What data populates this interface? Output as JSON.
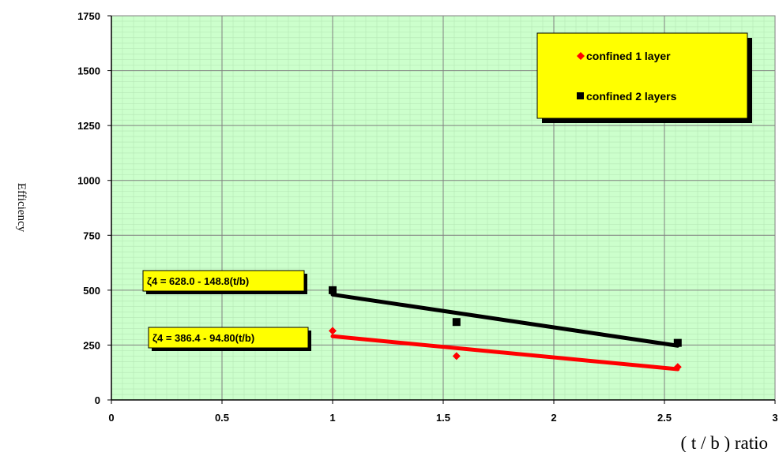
{
  "chart_data": {
    "type": "scatter",
    "xlabel": "( t / b ) ratio",
    "ylabel": "Efficiency",
    "xlim": [
      0,
      3
    ],
    "ylim": [
      0,
      1750
    ],
    "xticks": [
      "0",
      "0.5",
      "1",
      "1.5",
      "2",
      "2.5",
      "3"
    ],
    "yticks": [
      "0",
      "250",
      "500",
      "750",
      "1000",
      "1250",
      "1500",
      "1750"
    ],
    "grid": true,
    "legend_position": "top-right",
    "series": [
      {
        "name": "confined 1 layer",
        "marker": "diamond",
        "color": "#ff0000",
        "x": [
          1.0,
          1.56,
          2.56
        ],
        "y": [
          315,
          200,
          150
        ],
        "trendline": {
          "x": [
            1.0,
            2.56
          ],
          "y": [
            290,
            140
          ]
        }
      },
      {
        "name": "confined 2 layers",
        "marker": "square",
        "color": "#000000",
        "x": [
          1.0,
          1.56,
          2.56
        ],
        "y": [
          500,
          355,
          260
        ],
        "trendline": {
          "x": [
            1.0,
            2.56
          ],
          "y": [
            480,
            247
          ]
        }
      }
    ],
    "annotations": [
      {
        "text": "ζ4 = 628.0 - 148.8(t/b)",
        "series": "confined 2 layers"
      },
      {
        "text": "ζ4 = 386.4 - 94.80(t/b)",
        "series": "confined 1 layer"
      }
    ]
  },
  "colors": {
    "plot_background": "#ccffcc",
    "minor_grid": "#b5e6b5",
    "major_grid": "#808080",
    "legend_fill": "#ffff00",
    "label_fill": "#ffff00"
  }
}
